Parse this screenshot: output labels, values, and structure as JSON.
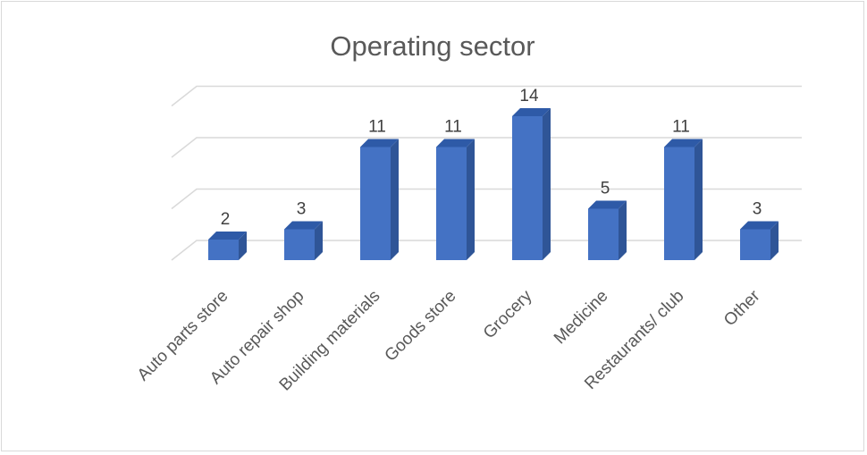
{
  "chart_data": {
    "type": "bar",
    "title": "Operating sector",
    "categories": [
      "Auto parts store",
      "Auto repair shop",
      "Building materials",
      "Goods store",
      "Grocery",
      "Medicine",
      "Restaurants/ club",
      "Other"
    ],
    "values": [
      2,
      3,
      11,
      11,
      14,
      5,
      11,
      3
    ],
    "ylim": [
      0,
      15
    ],
    "grid": true,
    "colors": {
      "bar_front": "#4472c4",
      "bar_side": "#2f5597",
      "bar_top": "#2e5aa7",
      "grid": "#d9d9d9"
    }
  }
}
